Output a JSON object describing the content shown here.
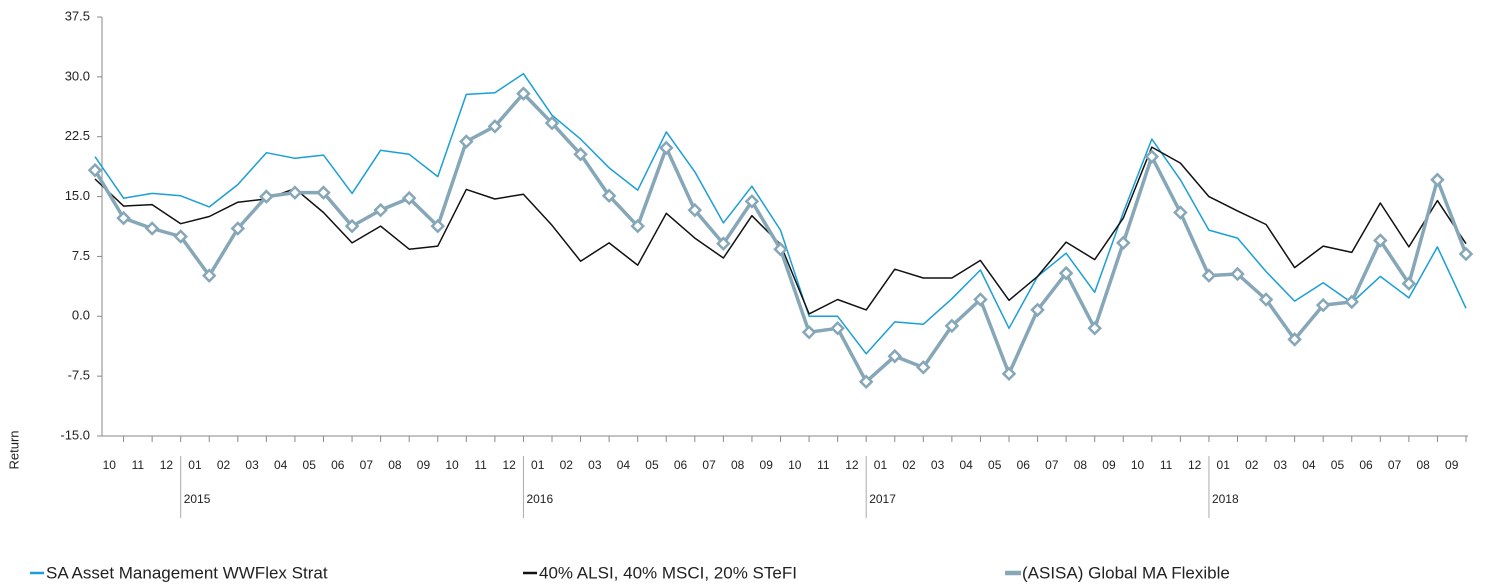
{
  "chart_data": {
    "type": "line",
    "y_label": "Return",
    "categories": [
      "10",
      "11",
      "12",
      "01",
      "02",
      "03",
      "04",
      "05",
      "06",
      "07",
      "08",
      "09",
      "10",
      "11",
      "12",
      "01",
      "02",
      "03",
      "04",
      "05",
      "06",
      "07",
      "08",
      "09",
      "10",
      "11",
      "12",
      "01",
      "02",
      "03",
      "04",
      "05",
      "06",
      "07",
      "08",
      "09",
      "10",
      "11",
      "12",
      "01",
      "02",
      "03",
      "04",
      "05",
      "06",
      "07",
      "08",
      "09",
      null
    ],
    "years": [
      "2015",
      "2016",
      "2017",
      "2018"
    ],
    "ylim": [
      -15,
      37.5
    ],
    "yticks": [
      {
        "value": -15,
        "label": "-15.0"
      },
      -7.5,
      {
        "value": 0,
        "label": "0.0"
      },
      7.5,
      {
        "value": 15,
        "label": "15.0"
      },
      22.5,
      {
        "value": 30,
        "label": "30.0"
      },
      37.5
    ],
    "series": [
      {
        "name": "SA Asset Management WWFlex Strat",
        "color": "#1a9fd6",
        "values": [
          20.0,
          14.8,
          15.4,
          15.1,
          13.7,
          16.5,
          20.5,
          19.8,
          20.2,
          15.4,
          20.8,
          20.3,
          17.5,
          27.8,
          28.0,
          30.4,
          25.2,
          22.2,
          18.6,
          15.8,
          23.1,
          18.1,
          11.7,
          16.3,
          10.8,
          0.0,
          0.0,
          -4.7,
          -0.7,
          -1.0,
          2.2,
          5.8,
          -1.5,
          5.0,
          7.9,
          3.0,
          13.0,
          22.2,
          17.1,
          10.8,
          9.8,
          5.6,
          1.9,
          4.2,
          1.7,
          5.0,
          2.3,
          8.7,
          1.0
        ]
      },
      {
        "name": "40% ALSI, 40% MSCI, 20% STeFI",
        "color": "#111111",
        "values": [
          17.2,
          13.8,
          14.0,
          11.6,
          12.5,
          14.3,
          14.7,
          16.0,
          13.0,
          9.2,
          11.3,
          8.4,
          8.8,
          15.9,
          14.7,
          15.3,
          11.4,
          6.9,
          9.2,
          6.4,
          12.9,
          9.8,
          7.3,
          12.6,
          9.0,
          0.3,
          2.1,
          0.8,
          5.9,
          4.8,
          4.8,
          7.0,
          2.0,
          5.0,
          9.3,
          7.1,
          12.3,
          21.2,
          19.2,
          15.0,
          13.2,
          11.5,
          6.1,
          8.8,
          8.0,
          14.2,
          8.7,
          14.5,
          9.1
        ]
      },
      {
        "name": "(ASISA) Global MA Flexible",
        "color": "#86a7b7",
        "markers": true,
        "values": [
          18.3,
          12.3,
          11.0,
          10.0,
          5.1,
          11.0,
          15.0,
          15.5,
          15.5,
          11.3,
          13.3,
          14.8,
          11.3,
          21.9,
          23.8,
          27.9,
          24.2,
          20.3,
          15.1,
          11.3,
          21.1,
          13.3,
          9.1,
          14.4,
          8.4,
          -2.0,
          -1.5,
          -8.2,
          -5.0,
          -6.4,
          -1.2,
          2.1,
          -7.2,
          0.8,
          5.4,
          -1.5,
          9.2,
          20.0,
          13.0,
          5.1,
          5.3,
          2.1,
          -2.9,
          1.4,
          1.8,
          9.5,
          4.1,
          17.1,
          7.8
        ]
      }
    ]
  }
}
